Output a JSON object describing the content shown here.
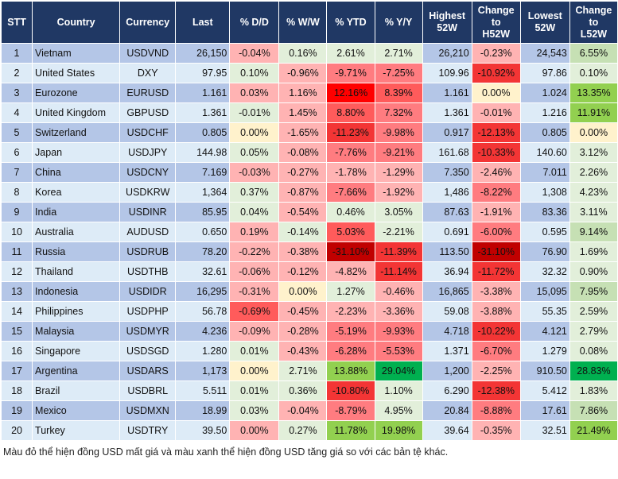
{
  "headers": {
    "stt": "STT",
    "country": "Country",
    "currency": "Currency",
    "last": "Last",
    "dd": "% D/D",
    "ww": "% W/W",
    "ytd": "% YTD",
    "yy": "% Y/Y",
    "high": [
      "Highest",
      "52W"
    ],
    "chh": [
      "Change",
      "to",
      "H52W"
    ],
    "low": [
      "Lowest",
      "52W"
    ],
    "chl": [
      "Change",
      "to",
      "L52W"
    ]
  },
  "colors": {
    "header": "#203864",
    "row_odd": "#B4C6E7",
    "row_even": "#DDEBF7",
    "light_red": "#FFB3B3",
    "red": "#FF7C80",
    "strong_red": "#F33535",
    "dark_red": "#C00000",
    "light_green": "#E2EFDA",
    "green": "#92D050",
    "dark_green": "#00B050",
    "neutral": "#FFF2CC"
  },
  "rows": [
    {
      "stt": "1",
      "country": "Vietnam",
      "currency": "USDVND",
      "last": "26,150",
      "dd": "-0.04%",
      "ww": "0.16%",
      "ytd": "2.61%",
      "yy": "2.71%",
      "high": "26,210",
      "chh": "-0.23%",
      "low": "24,543",
      "chl": "6.55%",
      "cls": [
        "r1",
        "g1",
        "g1",
        "g1",
        "r1",
        "g2"
      ]
    },
    {
      "stt": "2",
      "country": "United States",
      "currency": "DXY",
      "last": "97.95",
      "dd": "0.10%",
      "ww": "-0.96%",
      "ytd": "-9.71%",
      "yy": "-7.25%",
      "high": "109.96",
      "chh": "-10.92%",
      "low": "97.86",
      "chl": "0.10%",
      "cls": [
        "g1",
        "r1",
        "r2",
        "r2",
        "r4",
        "g1"
      ]
    },
    {
      "stt": "3",
      "country": "Eurozone",
      "currency": "EURUSD",
      "last": "1.161",
      "dd": "0.03%",
      "ww": "1.16%",
      "ytd": "12.16%",
      "yy": "8.39%",
      "high": "1.161",
      "chh": "0.00%",
      "low": "1.024",
      "chl": "13.35%",
      "cls": [
        "r1",
        "r1",
        "r5",
        "r3",
        "y",
        "g3"
      ]
    },
    {
      "stt": "4",
      "country": "United Kingdom",
      "currency": "GBPUSD",
      "last": "1.361",
      "dd": "-0.01%",
      "ww": "1.45%",
      "ytd": "8.80%",
      "yy": "7.32%",
      "high": "1.361",
      "chh": "-0.01%",
      "low": "1.216",
      "chl": "11.91%",
      "cls": [
        "g1",
        "r1",
        "r3",
        "r2",
        "r1",
        "g3"
      ]
    },
    {
      "stt": "5",
      "country": "Switzerland",
      "currency": "USDCHF",
      "last": "0.805",
      "dd": "0.00%",
      "ww": "-1.65%",
      "ytd": "-11.23%",
      "yy": "-9.98%",
      "high": "0.917",
      "chh": "-12.13%",
      "low": "0.805",
      "chl": "0.00%",
      "cls": [
        "y",
        "r1",
        "r4",
        "r2",
        "r4",
        "y"
      ]
    },
    {
      "stt": "6",
      "country": "Japan",
      "currency": "USDJPY",
      "last": "144.98",
      "dd": "0.05%",
      "ww": "-0.08%",
      "ytd": "-7.76%",
      "yy": "-9.21%",
      "high": "161.68",
      "chh": "-10.33%",
      "low": "140.60",
      "chl": "3.12%",
      "cls": [
        "g1",
        "r1",
        "r2",
        "r2",
        "r4",
        "g1"
      ]
    },
    {
      "stt": "7",
      "country": "China",
      "currency": "USDCNY",
      "last": "7.169",
      "dd": "-0.03%",
      "ww": "-0.27%",
      "ytd": "-1.78%",
      "yy": "-1.29%",
      "high": "7.350",
      "chh": "-2.46%",
      "low": "7.011",
      "chl": "2.26%",
      "cls": [
        "r1",
        "r1",
        "r1",
        "r1",
        "r1",
        "g1"
      ]
    },
    {
      "stt": "8",
      "country": "Korea",
      "currency": "USDKRW",
      "last": "1,364",
      "dd": "0.37%",
      "ww": "-0.87%",
      "ytd": "-7.66%",
      "yy": "-1.92%",
      "high": "1,486",
      "chh": "-8.22%",
      "low": "1,308",
      "chl": "4.23%",
      "cls": [
        "g1",
        "r1",
        "r2",
        "r1",
        "r2",
        "g1"
      ]
    },
    {
      "stt": "9",
      "country": "India",
      "currency": "USDINR",
      "last": "85.95",
      "dd": "0.04%",
      "ww": "-0.54%",
      "ytd": "0.46%",
      "yy": "3.05%",
      "high": "87.63",
      "chh": "-1.91%",
      "low": "83.36",
      "chl": "3.11%",
      "cls": [
        "g1",
        "r1",
        "g1",
        "g1",
        "r1",
        "g1"
      ]
    },
    {
      "stt": "10",
      "country": "Australia",
      "currency": "AUDUSD",
      "last": "0.650",
      "dd": "0.19%",
      "ww": "-0.14%",
      "ytd": "5.03%",
      "yy": "-2.21%",
      "high": "0.691",
      "chh": "-6.00%",
      "low": "0.595",
      "chl": "9.14%",
      "cls": [
        "r1",
        "g1",
        "r3",
        "g1",
        "r2",
        "g2"
      ]
    },
    {
      "stt": "11",
      "country": "Russia",
      "currency": "USDRUB",
      "last": "78.20",
      "dd": "-0.22%",
      "ww": "-0.38%",
      "ytd": "-31.10%",
      "yy": "-11.39%",
      "high": "113.50",
      "chh": "-31.10%",
      "low": "76.90",
      "chl": "1.69%",
      "cls": [
        "r1",
        "r1",
        "r6",
        "r4",
        "r6",
        "g1"
      ]
    },
    {
      "stt": "12",
      "country": "Thailand",
      "currency": "USDTHB",
      "last": "32.61",
      "dd": "-0.06%",
      "ww": "-0.12%",
      "ytd": "-4.82%",
      "yy": "-11.14%",
      "high": "36.94",
      "chh": "-11.72%",
      "low": "32.32",
      "chl": "0.90%",
      "cls": [
        "r1",
        "r1",
        "r1",
        "r4",
        "r4",
        "g1"
      ]
    },
    {
      "stt": "13",
      "country": "Indonesia",
      "currency": "USDIDR",
      "last": "16,295",
      "dd": "-0.31%",
      "ww": "0.00%",
      "ytd": "1.27%",
      "yy": "-0.46%",
      "high": "16,865",
      "chh": "-3.38%",
      "low": "15,095",
      "chl": "7.95%",
      "cls": [
        "r1",
        "y",
        "g1",
        "r1",
        "r1",
        "g2"
      ]
    },
    {
      "stt": "14",
      "country": "Philippines",
      "currency": "USDPHP",
      "last": "56.78",
      "dd": "-0.69%",
      "ww": "-0.45%",
      "ytd": "-2.23%",
      "yy": "-3.36%",
      "high": "59.08",
      "chh": "-3.88%",
      "low": "55.35",
      "chl": "2.59%",
      "cls": [
        "r3",
        "r1",
        "r1",
        "r1",
        "r1",
        "g1"
      ]
    },
    {
      "stt": "15",
      "country": "Malaysia",
      "currency": "USDMYR",
      "last": "4.236",
      "dd": "-0.09%",
      "ww": "-0.28%",
      "ytd": "-5.19%",
      "yy": "-9.93%",
      "high": "4.718",
      "chh": "-10.22%",
      "low": "4.121",
      "chl": "2.79%",
      "cls": [
        "r1",
        "r1",
        "r2",
        "r2",
        "r4",
        "g1"
      ]
    },
    {
      "stt": "16",
      "country": "Singapore",
      "currency": "USDSGD",
      "last": "1.280",
      "dd": "0.01%",
      "ww": "-0.43%",
      "ytd": "-6.28%",
      "yy": "-5.53%",
      "high": "1.371",
      "chh": "-6.70%",
      "low": "1.279",
      "chl": "0.08%",
      "cls": [
        "g1",
        "r1",
        "r2",
        "r2",
        "r2",
        "g1"
      ]
    },
    {
      "stt": "17",
      "country": "Argentina",
      "currency": "USDARS",
      "last": "1,173",
      "dd": "0.00%",
      "ww": "2.71%",
      "ytd": "13.88%",
      "yy": "29.04%",
      "high": "1,200",
      "chh": "-2.25%",
      "low": "910.50",
      "chl": "28.83%",
      "cls": [
        "y",
        "g1",
        "g3",
        "g4",
        "r1",
        "g4"
      ]
    },
    {
      "stt": "18",
      "country": "Brazil",
      "currency": "USDBRL",
      "last": "5.511",
      "dd": "0.01%",
      "ww": "0.36%",
      "ytd": "-10.80%",
      "yy": "1.10%",
      "high": "6.290",
      "chh": "-12.38%",
      "low": "5.412",
      "chl": "1.83%",
      "cls": [
        "g1",
        "g1",
        "r4",
        "g1",
        "r4",
        "g1"
      ]
    },
    {
      "stt": "19",
      "country": "Mexico",
      "currency": "USDMXN",
      "last": "18.99",
      "dd": "0.03%",
      "ww": "-0.04%",
      "ytd": "-8.79%",
      "yy": "4.95%",
      "high": "20.84",
      "chh": "-8.88%",
      "low": "17.61",
      "chl": "7.86%",
      "cls": [
        "g1",
        "r1",
        "r2",
        "g1",
        "r2",
        "g2"
      ]
    },
    {
      "stt": "20",
      "country": "Turkey",
      "currency": "USDTRY",
      "last": "39.50",
      "dd": "0.00%",
      "ww": "0.27%",
      "ytd": "11.78%",
      "yy": "19.98%",
      "high": "39.64",
      "chh": "-0.35%",
      "low": "32.51",
      "chl": "21.49%",
      "cls": [
        "r1",
        "g1",
        "g3",
        "g3",
        "r1",
        "g3"
      ]
    }
  ],
  "footnote": "Màu đỏ thể hiện đồng USD mất giá và màu xanh thể hiện đồng USD tăng giá so với các bản tệ khác."
}
